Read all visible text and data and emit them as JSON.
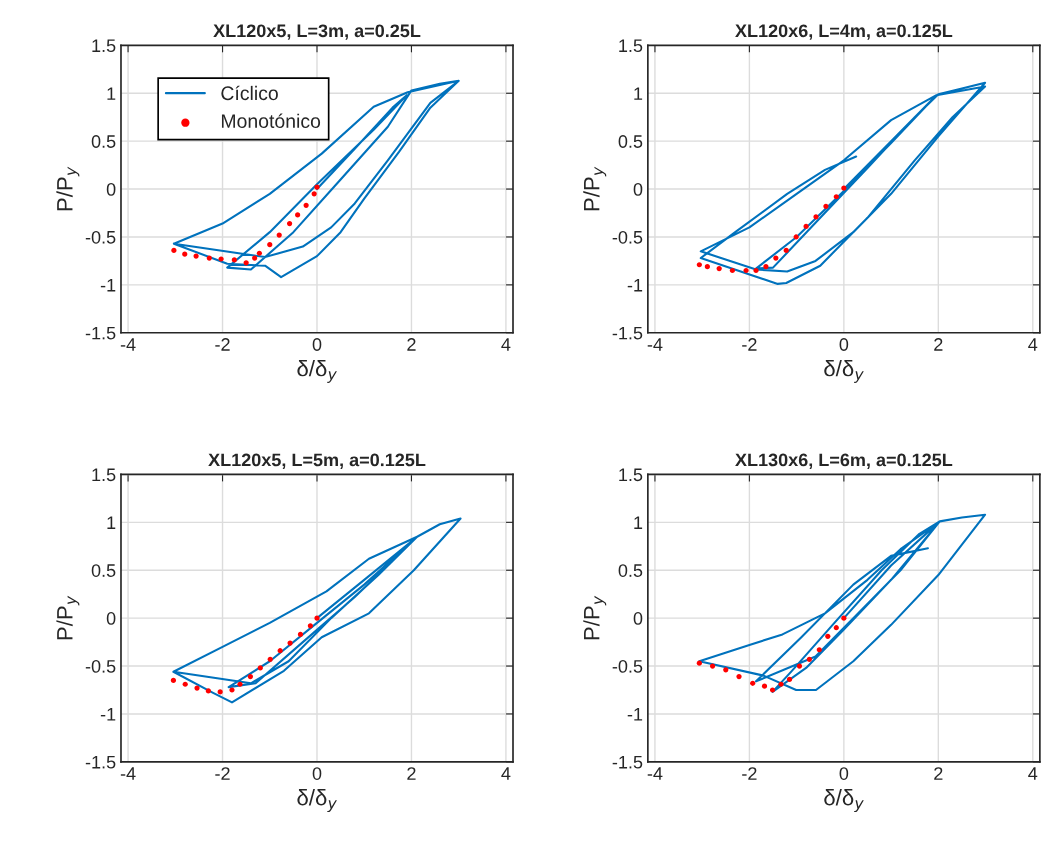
{
  "chart_data": [
    {
      "type": "line",
      "title": "XL120x5, L=3m, a=0.25L",
      "xlabel": "δ/δ$_{y}$",
      "ylabel": "P/P$_{y}$",
      "xlim": [
        -4.15,
        4.15
      ],
      "ylim": [
        -1.5,
        1.5
      ],
      "xticks": [
        -4,
        -2,
        0,
        2,
        4
      ],
      "yticks": [
        -1.5,
        -1,
        -0.5,
        0,
        0.5,
        1,
        1.5
      ],
      "grid": true,
      "legend": "top left",
      "series": [
        {
          "name": "Cíclico",
          "type": "line",
          "color": "#0072bd",
          "line_style": "solid",
          "x": [
            0,
            0.8,
            1.6,
            1.9,
            1.2,
            0,
            -1.0,
            -1.9,
            -1.4,
            -0.5,
            0.5,
            1.5,
            2.0,
            2.6,
            3.0,
            2.4,
            1.74,
            1.0,
            0.5,
            0,
            -0.76,
            -1.1,
            -1.9,
            -3.03,
            -2.0,
            -1.0,
            0.1,
            1.2,
            1.92,
            3.0,
            2.4,
            1.5,
            0.8,
            0.3,
            -0.3,
            -1.1,
            -3.03
          ],
          "values": [
            0,
            0.42,
            0.85,
            0.98,
            0.62,
            0.05,
            -0.45,
            -0.82,
            -0.84,
            -0.45,
            0.1,
            0.65,
            1.03,
            1.1,
            1.13,
            0.85,
            0.39,
            -0.1,
            -0.45,
            -0.7,
            -0.92,
            -0.8,
            -0.78,
            -0.57,
            -0.36,
            -0.05,
            0.37,
            0.86,
            1.01,
            1.13,
            0.9,
            0.3,
            -0.15,
            -0.4,
            -0.6,
            -0.71,
            -0.57
          ]
        },
        {
          "name": "Monotónico",
          "type": "scatter",
          "color": "#ff0000",
          "marker": "circle",
          "x": [
            0,
            -0.06,
            -0.23,
            -0.41,
            -0.58,
            -0.8,
            -1.0,
            -1.22,
            -1.32,
            -1.5,
            -1.75,
            -2.03,
            -2.28,
            -2.56,
            -2.8,
            -3.03
          ],
          "values": [
            0.02,
            -0.05,
            -0.17,
            -0.27,
            -0.36,
            -0.48,
            -0.58,
            -0.67,
            -0.72,
            -0.77,
            -0.74,
            -0.73,
            -0.72,
            -0.7,
            -0.68,
            -0.64
          ]
        }
      ]
    },
    {
      "type": "line",
      "title": "XL120x6, L=4m, a=0.125L",
      "xlabel": "δ/δ$_{y}$",
      "ylabel": "P/P$_{y}$",
      "xlim": [
        -4.15,
        4.15
      ],
      "ylim": [
        -1.5,
        1.5
      ],
      "xticks": [
        -4,
        -2,
        0,
        2,
        4
      ],
      "yticks": [
        -1.5,
        -1,
        -0.5,
        0,
        0.5,
        1,
        1.5
      ],
      "grid": true,
      "series": [
        {
          "type": "line",
          "color": "#0072bd",
          "line_style": "solid",
          "x": [
            0,
            1.0,
            1.96,
            1.0,
            0,
            -1.0,
            -1.86,
            -1.5,
            -0.5,
            0.5,
            1.5,
            2.0,
            2.5,
            2.99,
            2.0,
            1.0,
            0.2,
            -0.6,
            -1.2,
            -1.86,
            -3.03,
            -2.0,
            -1.0,
            0.0,
            1.0,
            1.96,
            2.99,
            2.3,
            1.5,
            0.5,
            -0.5,
            -1.22,
            -1.4,
            -3.03,
            -2.3,
            -1.2,
            -0.4,
            0.26
          ],
          "values": [
            0,
            0.5,
            0.98,
            0.48,
            -0.02,
            -0.5,
            -0.83,
            -0.82,
            -0.3,
            0.22,
            0.75,
            0.99,
            1.05,
            1.11,
            0.55,
            -0.05,
            -0.45,
            -0.75,
            -0.86,
            -0.84,
            -0.65,
            -0.4,
            -0.05,
            0.3,
            0.72,
            0.98,
            1.07,
            0.75,
            0.3,
            -0.3,
            -0.8,
            -0.98,
            -0.99,
            -0.72,
            -0.45,
            -0.05,
            0.2,
            0.34
          ]
        },
        {
          "type": "scatter",
          "color": "#ff0000",
          "marker": "circle",
          "x": [
            0,
            -0.16,
            -0.38,
            -0.59,
            -0.8,
            -1.01,
            -1.22,
            -1.44,
            -1.65,
            -1.86,
            -2.07,
            -2.36,
            -2.64,
            -2.89,
            -3.06
          ],
          "values": [
            0.01,
            -0.08,
            -0.18,
            -0.29,
            -0.39,
            -0.5,
            -0.64,
            -0.72,
            -0.81,
            -0.85,
            -0.85,
            -0.85,
            -0.83,
            -0.81,
            -0.79
          ]
        }
      ]
    },
    {
      "type": "line",
      "title": "XL120x5, L=5m, a=0.125L",
      "xlabel": "δ/δ$_{y}$",
      "ylabel": "P/P$_{y}$",
      "xlim": [
        -4.15,
        4.15
      ],
      "ylim": [
        -1.5,
        1.5
      ],
      "xticks": [
        -4,
        -2,
        0,
        2,
        4
      ],
      "yticks": [
        -1.5,
        -1,
        -0.5,
        0,
        0.5,
        1,
        1.5
      ],
      "grid": true,
      "series": [
        {
          "type": "line",
          "color": "#0072bd",
          "line_style": "solid",
          "x": [
            0,
            1.0,
            2.12,
            1.0,
            0,
            -1.0,
            -1.87,
            -1.3,
            -0.3,
            0.8,
            1.6,
            2.12,
            2.6,
            3.04,
            2.05,
            1.1,
            0.1,
            -0.7,
            -1.8,
            -2.2,
            -3.04,
            -2.0,
            -1.0,
            0.2,
            1.1,
            1.9,
            2.12,
            1.3,
            0.3,
            -0.6,
            -1.4,
            -3.04
          ],
          "values": [
            0,
            0.4,
            0.85,
            0.35,
            -0.05,
            -0.45,
            -0.72,
            -0.68,
            -0.25,
            0.22,
            0.6,
            0.85,
            0.98,
            1.04,
            0.5,
            0.05,
            -0.2,
            -0.55,
            -0.88,
            -0.78,
            -0.56,
            -0.3,
            -0.05,
            0.28,
            0.62,
            0.8,
            0.85,
            0.45,
            0.0,
            -0.45,
            -0.68,
            -0.56
          ]
        },
        {
          "type": "scatter",
          "color": "#ff0000",
          "marker": "circle",
          "x": [
            0,
            -0.14,
            -0.35,
            -0.57,
            -0.78,
            -0.99,
            -1.2,
            -1.41,
            -1.63,
            -1.8,
            -2.05,
            -2.3,
            -2.54,
            -2.79,
            -3.04
          ],
          "values": [
            0,
            -0.08,
            -0.17,
            -0.26,
            -0.34,
            -0.43,
            -0.52,
            -0.61,
            -0.69,
            -0.75,
            -0.77,
            -0.76,
            -0.73,
            -0.69,
            -0.65
          ]
        }
      ]
    },
    {
      "type": "line",
      "title": "XL130x6, L=6m, a=0.125L",
      "xlabel": "δ/δ$_{y}$",
      "ylabel": "P/P$_{y}$",
      "xlim": [
        -4.15,
        4.15
      ],
      "ylim": [
        -1.5,
        1.5
      ],
      "xticks": [
        -4,
        -2,
        0,
        2,
        4
      ],
      "yticks": [
        -1.5,
        -1,
        -0.5,
        0,
        0.5,
        1,
        1.5
      ],
      "grid": true,
      "series": [
        {
          "type": "line",
          "color": "#0072bd",
          "line_style": "solid",
          "x": [
            0,
            1.0,
            2.03,
            1.0,
            0,
            -0.8,
            -1.51,
            -1.1,
            -0.2,
            0.8,
            1.6,
            2.03,
            2.5,
            2.99,
            2.0,
            1.0,
            0.2,
            -0.59,
            -1.01,
            -1.7,
            -3.06,
            -2.0,
            -1.3,
            -0.4,
            0.5,
            1.2,
            2.03,
            1.2,
            0.2,
            -0.6,
            -1.86,
            -0.9,
            0.2,
            1.0,
            1.78
          ],
          "values": [
            0,
            0.55,
            1.01,
            0.4,
            -0.12,
            -0.52,
            -0.77,
            -0.55,
            -0.05,
            0.5,
            0.88,
            1.01,
            1.05,
            1.08,
            0.45,
            -0.07,
            -0.45,
            -0.75,
            -0.75,
            -0.6,
            -0.45,
            -0.28,
            -0.17,
            0.05,
            0.4,
            0.72,
            1.01,
            0.5,
            0.0,
            -0.4,
            -0.66,
            -0.2,
            0.35,
            0.65,
            0.73
          ]
        },
        {
          "type": "scatter",
          "color": "#ff0000",
          "marker": "circle",
          "x": [
            0,
            -0.16,
            -0.34,
            -0.52,
            -0.73,
            -0.94,
            -1.15,
            -1.33,
            -1.51,
            -1.68,
            -1.93,
            -2.22,
            -2.5,
            -2.78,
            -3.06
          ],
          "values": [
            0,
            -0.1,
            -0.19,
            -0.33,
            -0.43,
            -0.5,
            -0.64,
            -0.69,
            -0.75,
            -0.71,
            -0.68,
            -0.61,
            -0.54,
            -0.5,
            -0.47
          ]
        }
      ]
    }
  ]
}
